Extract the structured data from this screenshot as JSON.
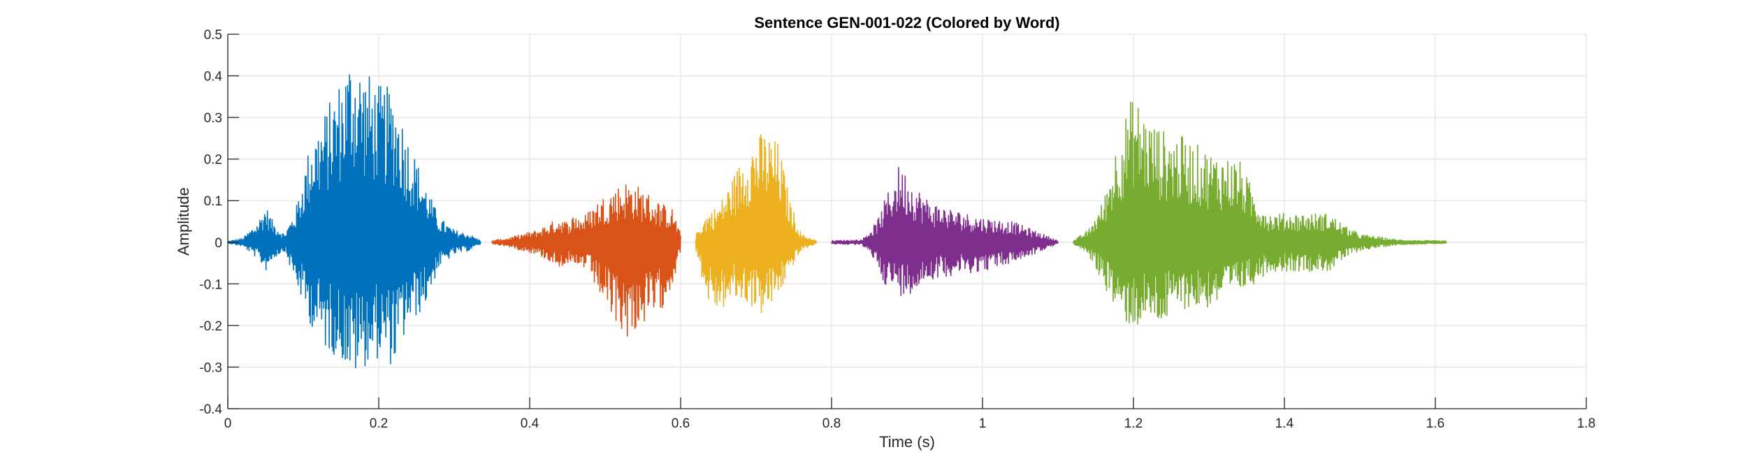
{
  "chart_data": {
    "type": "line",
    "title": "Sentence GEN-001-022 (Colored by Word)",
    "xlabel": "Time (s)",
    "ylabel": "Amplitude",
    "xlim": [
      0,
      1.8
    ],
    "ylim": [
      -0.4,
      0.5
    ],
    "xticks": [
      0,
      0.2,
      0.4,
      0.6,
      0.8,
      1.0,
      1.2,
      1.4,
      1.6,
      1.8
    ],
    "xtick_labels": [
      "0",
      "0.2",
      "0.4",
      "0.6",
      "0.8",
      "1",
      "1.2",
      "1.4",
      "1.6",
      "1.8"
    ],
    "yticks": [
      -0.4,
      -0.3,
      -0.2,
      -0.1,
      0,
      0.1,
      0.2,
      0.3,
      0.4,
      0.5
    ],
    "ytick_labels": [
      "-0.4",
      "-0.3",
      "-0.2",
      "-0.1",
      "0",
      "0.1",
      "0.2",
      "0.3",
      "0.4",
      "0.5"
    ],
    "grid": true,
    "series": [
      {
        "color": "#0072BD",
        "x_start": 0.0,
        "x_end": 0.335,
        "envelope": [
          [
            0.0,
            0.002,
            0.002
          ],
          [
            0.02,
            0.01,
            0.01
          ],
          [
            0.04,
            0.05,
            0.04
          ],
          [
            0.05,
            0.09,
            0.07
          ],
          [
            0.06,
            0.05,
            0.04
          ],
          [
            0.075,
            0.02,
            0.02
          ],
          [
            0.09,
            0.08,
            0.1
          ],
          [
            0.11,
            0.25,
            0.2
          ],
          [
            0.13,
            0.32,
            0.26
          ],
          [
            0.15,
            0.4,
            0.28
          ],
          [
            0.165,
            0.47,
            0.33
          ],
          [
            0.18,
            0.42,
            0.3
          ],
          [
            0.2,
            0.38,
            0.28
          ],
          [
            0.22,
            0.37,
            0.3
          ],
          [
            0.24,
            0.25,
            0.2
          ],
          [
            0.26,
            0.15,
            0.16
          ],
          [
            0.28,
            0.06,
            0.06
          ],
          [
            0.3,
            0.03,
            0.03
          ],
          [
            0.32,
            0.02,
            0.02
          ],
          [
            0.335,
            0.004,
            0.004
          ]
        ]
      },
      {
        "color": "#D95319",
        "x_start": 0.35,
        "x_end": 0.6,
        "envelope": [
          [
            0.35,
            0.004,
            0.004
          ],
          [
            0.37,
            0.01,
            0.01
          ],
          [
            0.39,
            0.02,
            0.02
          ],
          [
            0.41,
            0.03,
            0.03
          ],
          [
            0.43,
            0.05,
            0.05
          ],
          [
            0.44,
            0.06,
            0.06
          ],
          [
            0.45,
            0.05,
            0.05
          ],
          [
            0.46,
            0.07,
            0.08
          ],
          [
            0.47,
            0.06,
            0.06
          ],
          [
            0.48,
            0.08,
            0.08
          ],
          [
            0.49,
            0.1,
            0.12
          ],
          [
            0.51,
            0.13,
            0.19
          ],
          [
            0.53,
            0.15,
            0.23
          ],
          [
            0.55,
            0.13,
            0.2
          ],
          [
            0.57,
            0.1,
            0.18
          ],
          [
            0.59,
            0.08,
            0.1
          ],
          [
            0.6,
            0.02,
            0.02
          ]
        ]
      },
      {
        "color": "#EDB120",
        "x_start": 0.62,
        "x_end": 0.78,
        "envelope": [
          [
            0.62,
            0.02,
            0.02
          ],
          [
            0.635,
            0.07,
            0.14
          ],
          [
            0.65,
            0.09,
            0.17
          ],
          [
            0.67,
            0.16,
            0.14
          ],
          [
            0.69,
            0.24,
            0.15
          ],
          [
            0.71,
            0.27,
            0.18
          ],
          [
            0.73,
            0.24,
            0.13
          ],
          [
            0.745,
            0.1,
            0.07
          ],
          [
            0.76,
            0.02,
            0.02
          ],
          [
            0.78,
            0.004,
            0.004
          ]
        ]
      },
      {
        "color": "#7E2F8E",
        "x_start": 0.8,
        "x_end": 1.1,
        "envelope": [
          [
            0.8,
            0.004,
            0.004
          ],
          [
            0.84,
            0.006,
            0.006
          ],
          [
            0.86,
            0.05,
            0.05
          ],
          [
            0.87,
            0.1,
            0.1
          ],
          [
            0.89,
            0.19,
            0.13
          ],
          [
            0.91,
            0.14,
            0.12
          ],
          [
            0.93,
            0.1,
            0.09
          ],
          [
            0.96,
            0.08,
            0.08
          ],
          [
            1.0,
            0.06,
            0.07
          ],
          [
            1.04,
            0.05,
            0.05
          ],
          [
            1.08,
            0.02,
            0.02
          ],
          [
            1.1,
            0.004,
            0.004
          ]
        ]
      },
      {
        "color": "#77AC30",
        "x_start": 1.12,
        "x_end": 1.615,
        "envelope": [
          [
            1.12,
            0.003,
            0.003
          ],
          [
            1.14,
            0.03,
            0.03
          ],
          [
            1.16,
            0.1,
            0.1
          ],
          [
            1.18,
            0.26,
            0.18
          ],
          [
            1.2,
            0.36,
            0.21
          ],
          [
            1.22,
            0.3,
            0.19
          ],
          [
            1.24,
            0.27,
            0.2
          ],
          [
            1.26,
            0.26,
            0.16
          ],
          [
            1.3,
            0.22,
            0.16
          ],
          [
            1.34,
            0.2,
            0.12
          ],
          [
            1.36,
            0.12,
            0.1
          ],
          [
            1.38,
            0.07,
            0.07
          ],
          [
            1.42,
            0.07,
            0.07
          ],
          [
            1.46,
            0.07,
            0.07
          ],
          [
            1.48,
            0.04,
            0.04
          ],
          [
            1.5,
            0.02,
            0.02
          ],
          [
            1.55,
            0.006,
            0.006
          ],
          [
            1.615,
            0.003,
            0.003
          ]
        ]
      }
    ]
  }
}
